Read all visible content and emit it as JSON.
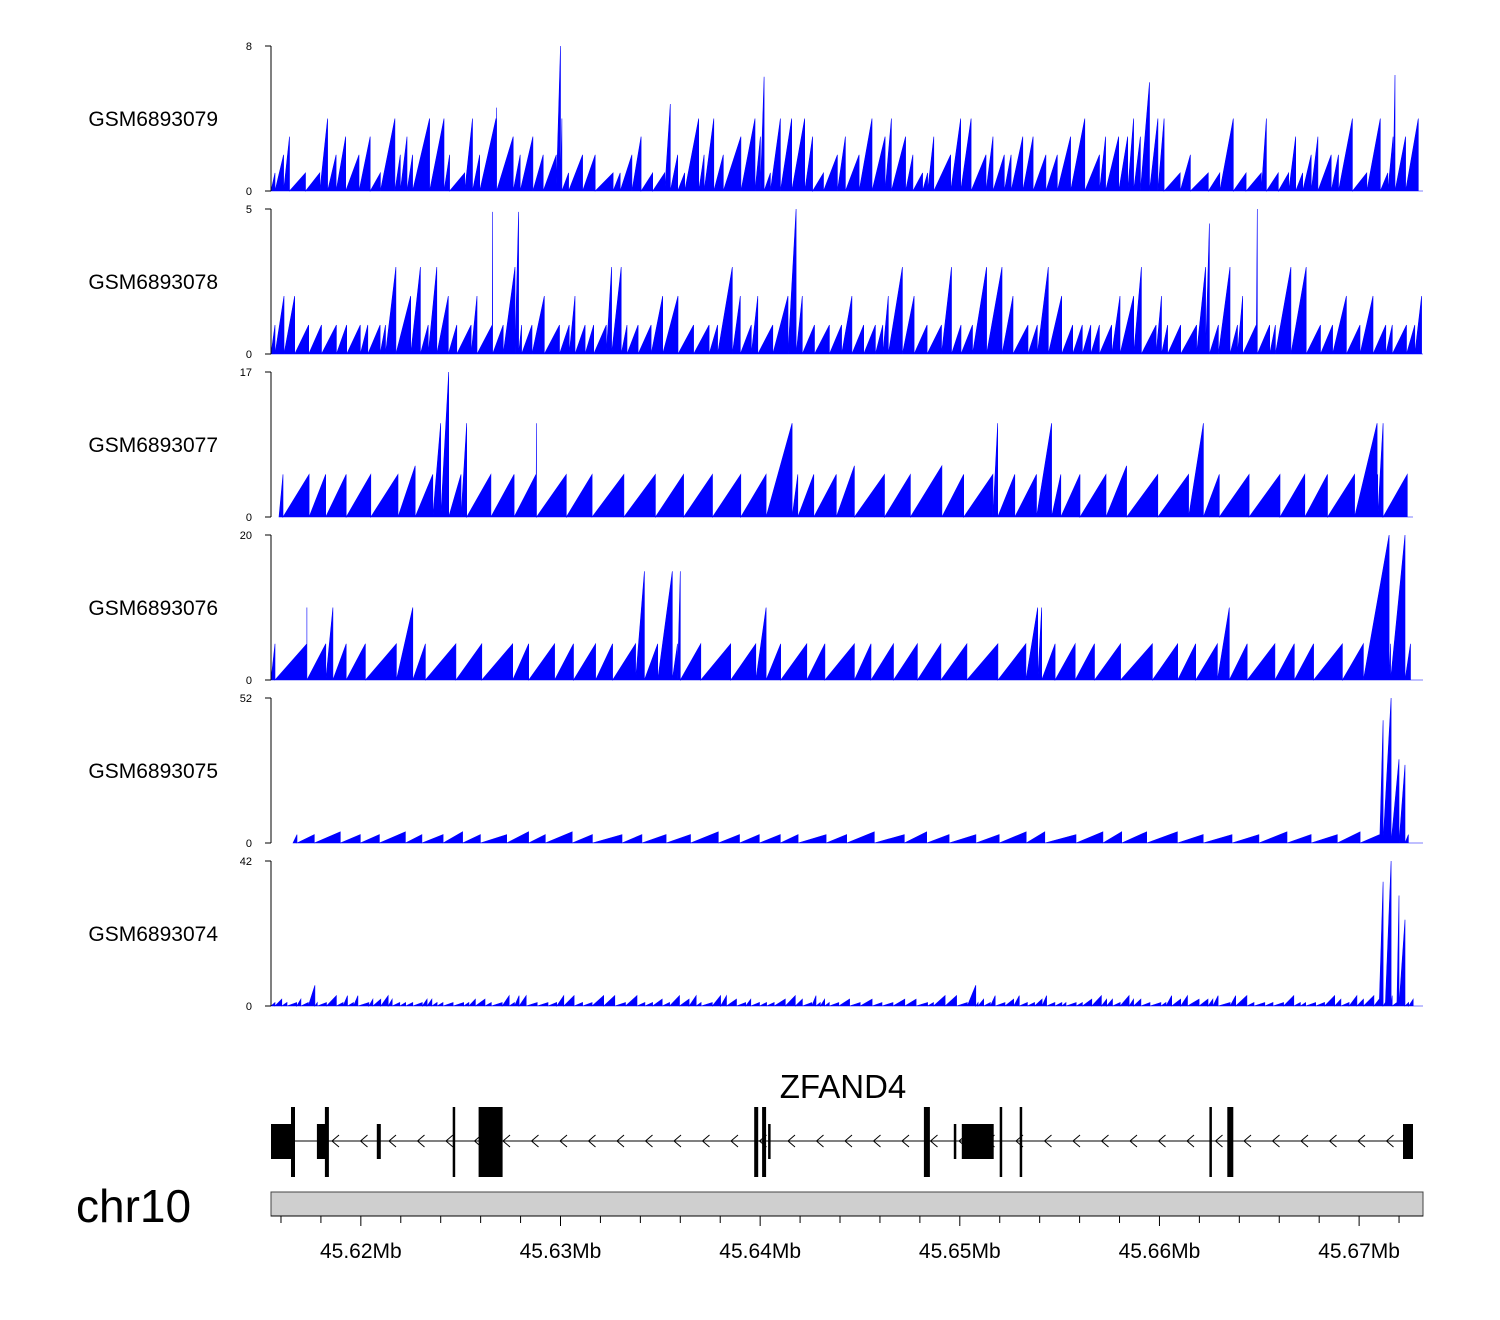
{
  "chart_data": {
    "type": "area",
    "chromosome": "chr10",
    "gene": "ZFAND4",
    "strand": "-",
    "xlim": [
      45.6155,
      45.6732
    ],
    "x_ticks": [
      "45.62Mb",
      "45.63Mb",
      "45.64Mb",
      "45.65Mb",
      "45.66Mb",
      "45.67Mb"
    ],
    "x_tick_values": [
      45.62,
      45.63,
      45.64,
      45.65,
      45.66,
      45.67
    ],
    "fill_color": "#0000ff",
    "tracks": [
      {
        "name": "GSM6893079",
        "ymax": 8,
        "ymin": 0,
        "ymin_label": "0",
        "ymax_label": "8",
        "seed": 11,
        "base_heights": [
          1,
          2,
          3,
          4
        ],
        "gap_range": [
          0.00025,
          0.0009
        ],
        "peaks": [
          [
            45.63,
            8
          ],
          [
            45.6268,
            4.6
          ],
          [
            45.6355,
            4.8
          ],
          [
            45.6402,
            6.3
          ],
          [
            45.6595,
            6
          ],
          [
            45.6718,
            6.4
          ]
        ]
      },
      {
        "name": "GSM6893078",
        "ymax": 5,
        "ymin": 0,
        "ymin_label": "0",
        "ymax_label": "5",
        "seed": 23,
        "base_heights": [
          1,
          1,
          2,
          3
        ],
        "gap_range": [
          0.00025,
          0.0008
        ],
        "peaks": [
          [
            45.6266,
            4.9
          ],
          [
            45.6279,
            4.9
          ],
          [
            45.6418,
            5
          ],
          [
            45.6625,
            4.5
          ],
          [
            45.6649,
            5
          ]
        ]
      },
      {
        "name": "GSM6893077",
        "ymax": 17,
        "ymin": 0,
        "ymin_label": "0",
        "ymax_label": "17",
        "seed": 37,
        "base_heights": [
          5,
          5,
          5,
          6
        ],
        "gap_range": [
          0.0008,
          0.0016
        ],
        "xstart": 45.6159,
        "xend": 45.6727,
        "peaks": [
          [
            45.6244,
            17
          ],
          [
            45.624,
            11
          ],
          [
            45.6253,
            11
          ],
          [
            45.6288,
            11
          ],
          [
            45.6416,
            11
          ],
          [
            45.6519,
            11
          ],
          [
            45.6546,
            11
          ],
          [
            45.6622,
            11
          ],
          [
            45.6709,
            11
          ],
          [
            45.6712,
            11
          ]
        ]
      },
      {
        "name": "GSM6893076",
        "ymax": 20,
        "ymin": 0,
        "ymin_label": "0",
        "ymax_label": "20",
        "seed": 41,
        "base_heights": [
          5,
          5,
          5,
          5
        ],
        "gap_range": [
          0.0008,
          0.0016
        ],
        "peaks": [
          [
            45.6173,
            10
          ],
          [
            45.6186,
            10
          ],
          [
            45.6226,
            10
          ],
          [
            45.6342,
            15
          ],
          [
            45.6356,
            15
          ],
          [
            45.636,
            15
          ],
          [
            45.6403,
            10
          ],
          [
            45.6539,
            10
          ],
          [
            45.6541,
            10
          ],
          [
            45.6635,
            10
          ],
          [
            45.6715,
            20
          ],
          [
            45.6723,
            20
          ]
        ]
      },
      {
        "name": "GSM6893075",
        "ymax": 52,
        "ymin": 0,
        "ymin_label": "0",
        "ymax_label": "52",
        "seed": 53,
        "base_heights": [
          3,
          3,
          4,
          4
        ],
        "gap_range": [
          0.0008,
          0.0016
        ],
        "xstart": 45.6166,
        "peaks": [
          [
            45.6716,
            52
          ],
          [
            45.6712,
            44
          ],
          [
            45.672,
            30
          ],
          [
            45.6723,
            28
          ]
        ]
      },
      {
        "name": "GSM6893074",
        "ymax": 42,
        "ymin": 0,
        "ymin_label": "0",
        "ymax_label": "42",
        "seed": 67,
        "base_heights": [
          1,
          1,
          2,
          3
        ],
        "gap_range": [
          0.0002,
          0.0006
        ],
        "peaks": [
          [
            45.6716,
            42
          ],
          [
            45.6712,
            36
          ],
          [
            45.672,
            32
          ],
          [
            45.6723,
            25
          ],
          [
            45.6508,
            6
          ],
          [
            45.6177,
            6
          ]
        ]
      }
    ],
    "gene_model": {
      "intron_range": [
        45.6155,
        45.6727
      ],
      "exons": [
        {
          "start": 45.6155,
          "end": 45.6166,
          "tall": false
        },
        {
          "start": 45.6165,
          "end": 45.6167,
          "tall": true
        },
        {
          "start": 45.6178,
          "end": 45.6183,
          "tall": false
        },
        {
          "start": 45.6182,
          "end": 45.6184,
          "tall": true
        },
        {
          "start": 45.6208,
          "end": 45.621,
          "tall": false
        },
        {
          "start": 45.6246,
          "end": 45.6247,
          "tall": true
        },
        {
          "start": 45.6259,
          "end": 45.6271,
          "tall": true
        },
        {
          "start": 45.6397,
          "end": 45.6399,
          "tall": true
        },
        {
          "start": 45.6401,
          "end": 45.6403,
          "tall": true
        },
        {
          "start": 45.6404,
          "end": 45.6405,
          "tall": false
        },
        {
          "start": 45.6482,
          "end": 45.6485,
          "tall": true
        },
        {
          "start": 45.6497,
          "end": 45.6498,
          "tall": false
        },
        {
          "start": 45.6501,
          "end": 45.6517,
          "tall": false
        },
        {
          "start": 45.652,
          "end": 45.6521,
          "tall": true
        },
        {
          "start": 45.653,
          "end": 45.6531,
          "tall": true
        },
        {
          "start": 45.6625,
          "end": 45.6626,
          "tall": true
        },
        {
          "start": 45.6634,
          "end": 45.6637,
          "tall": true
        },
        {
          "start": 45.6722,
          "end": 45.6727,
          "tall": false
        }
      ]
    }
  }
}
